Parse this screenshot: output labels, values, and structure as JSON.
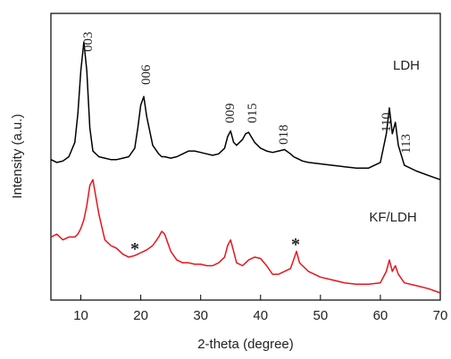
{
  "chart_data": {
    "type": "line",
    "xlabel": "2-theta (degree)",
    "ylabel": "Intensity (a.u.)",
    "xlim": [
      5,
      70
    ],
    "ylim": [
      0,
      100
    ],
    "xticks": [
      10,
      20,
      30,
      40,
      50,
      60,
      70
    ],
    "x": [
      5,
      6,
      7,
      8,
      9,
      9.5,
      10,
      10.5,
      11,
      11.5,
      12,
      13,
      14,
      15,
      16,
      17,
      18,
      19,
      19.5,
      20,
      20.5,
      21,
      22,
      23,
      23.5,
      24,
      25,
      26,
      27,
      28,
      29,
      30,
      31,
      32,
      33,
      34,
      34.5,
      35,
      35.5,
      36,
      37,
      37.5,
      38,
      39,
      40,
      41,
      42,
      43,
      44,
      45,
      45.5,
      46,
      46.5,
      47,
      48,
      50,
      52,
      54,
      56,
      58,
      60,
      61,
      61.5,
      62,
      62.5,
      63,
      64,
      66,
      68,
      70
    ],
    "series": [
      {
        "name": "LDH",
        "color": "#000000",
        "values": [
          49,
          48,
          48.5,
          50,
          55,
          65,
          80,
          90,
          80,
          60,
          52,
          50,
          49.5,
          49,
          49,
          49.5,
          50,
          53,
          60,
          68,
          71,
          64,
          54,
          51,
          50,
          50,
          49.5,
          50,
          51,
          52,
          52,
          51.5,
          51,
          50.5,
          51,
          53,
          57,
          59,
          55,
          54,
          56,
          58,
          58.5,
          55,
          53,
          52,
          51.5,
          52,
          52.5,
          51,
          50,
          49.5,
          49,
          48.5,
          48,
          47.5,
          47,
          46.5,
          46,
          46,
          48,
          58,
          67,
          58,
          62,
          54,
          47,
          45,
          43.5,
          42
        ]
      },
      {
        "name": "KF/LDH",
        "color": "#e8141c",
        "values": [
          22,
          23,
          21,
          22,
          22,
          23,
          25,
          28,
          33,
          40,
          42,
          30,
          21,
          19,
          18,
          16,
          15,
          15.5,
          16,
          16.5,
          17,
          17.5,
          19,
          22,
          24,
          23,
          17,
          14,
          13,
          13,
          12.5,
          12.5,
          12,
          12,
          13,
          15,
          19,
          21,
          17,
          13,
          12,
          13,
          14,
          15,
          14.5,
          12,
          9,
          9,
          10,
          11,
          14,
          17,
          13,
          12,
          10,
          8,
          7,
          6,
          5.5,
          5.5,
          6,
          10,
          14,
          10,
          12,
          9,
          6,
          5,
          4,
          2.5
        ]
      }
    ],
    "annotations": [
      "003",
      "006",
      "009",
      "015",
      "018",
      "110",
      "113",
      "*",
      "*"
    ]
  }
}
